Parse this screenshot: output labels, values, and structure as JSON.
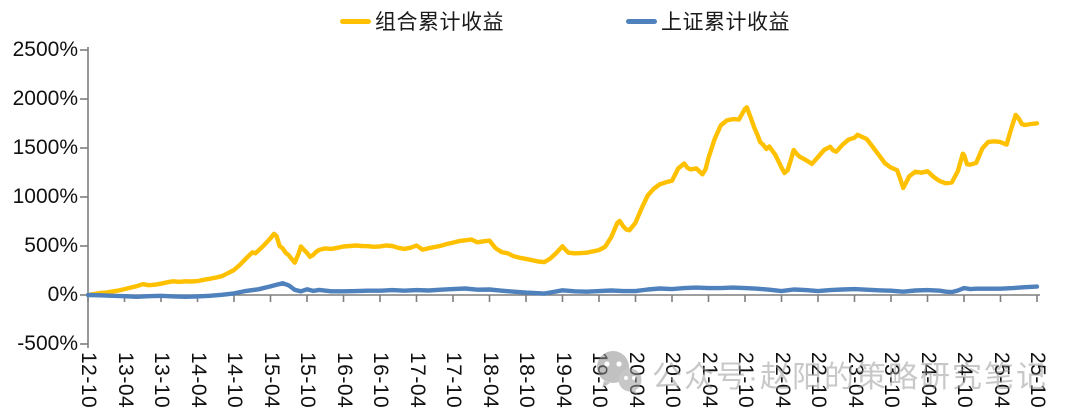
{
  "watermark": {
    "text": "公众号·赵阳的策略研究笔记"
  },
  "chart_data": {
    "type": "line",
    "title": "",
    "xlabel": "",
    "ylabel": "",
    "grid": false,
    "legend_position": "top",
    "x_unit": "months since 2012-10",
    "categories": [
      "12-10",
      "13-04",
      "13-10",
      "14-04",
      "14-10",
      "15-04",
      "15-10",
      "16-04",
      "16-10",
      "17-04",
      "17-10",
      "18-04",
      "18-10",
      "19-04",
      "19-10",
      "20-04",
      "20-10",
      "21-04",
      "21-10",
      "22-04",
      "22-10",
      "23-04",
      "23-10",
      "24-04",
      "24-10",
      "25-04",
      "25-10"
    ],
    "category_spacing_months": 6,
    "ylim": [
      -500,
      2500
    ],
    "ytick_values": [
      -500,
      0,
      500,
      1000,
      1500,
      2000,
      2500
    ],
    "ytick_labels": [
      "-500%",
      "0%",
      "500%",
      "1000%",
      "1500%",
      "2000%",
      "2500%"
    ],
    "axis_color": "#7f7f7f",
    "series": [
      {
        "name": "组合累计收益",
        "color": "#FFC000",
        "points": [
          [
            0,
            0
          ],
          [
            1,
            10
          ],
          [
            2,
            20
          ],
          [
            3,
            25
          ],
          [
            4,
            35
          ],
          [
            5,
            45
          ],
          [
            6,
            60
          ],
          [
            7,
            75
          ],
          [
            8,
            90
          ],
          [
            9,
            110
          ],
          [
            10,
            100
          ],
          [
            11,
            105
          ],
          [
            12,
            115
          ],
          [
            13,
            130
          ],
          [
            14,
            140
          ],
          [
            15,
            135
          ],
          [
            16,
            140
          ],
          [
            17,
            138
          ],
          [
            18,
            142
          ],
          [
            19,
            155
          ],
          [
            20,
            165
          ],
          [
            21,
            178
          ],
          [
            22,
            192
          ],
          [
            23,
            222
          ],
          [
            24,
            255
          ],
          [
            25,
            310
          ],
          [
            26,
            375
          ],
          [
            27,
            435
          ],
          [
            27.5,
            425
          ],
          [
            28,
            452
          ],
          [
            29,
            512
          ],
          [
            30,
            580
          ],
          [
            30.6,
            625
          ],
          [
            31,
            600
          ],
          [
            31.5,
            500
          ],
          [
            32,
            475
          ],
          [
            32.5,
            430
          ],
          [
            33,
            405
          ],
          [
            33.5,
            365
          ],
          [
            34,
            330
          ],
          [
            34.6,
            420
          ],
          [
            35,
            495
          ],
          [
            35.5,
            460
          ],
          [
            36,
            430
          ],
          [
            36.5,
            390
          ],
          [
            37,
            408
          ],
          [
            37.5,
            440
          ],
          [
            38,
            460
          ],
          [
            39,
            475
          ],
          [
            40,
            470
          ],
          [
            41,
            482
          ],
          [
            42,
            495
          ],
          [
            43,
            500
          ],
          [
            44,
            505
          ],
          [
            45,
            500
          ],
          [
            46,
            498
          ],
          [
            47,
            492
          ],
          [
            48,
            496
          ],
          [
            49,
            505
          ],
          [
            50,
            500
          ],
          [
            51,
            482
          ],
          [
            52,
            470
          ],
          [
            53,
            482
          ],
          [
            54,
            505
          ],
          [
            55,
            462
          ],
          [
            56,
            478
          ],
          [
            57,
            490
          ],
          [
            58,
            502
          ],
          [
            59,
            520
          ],
          [
            60,
            535
          ],
          [
            61,
            550
          ],
          [
            62,
            558
          ],
          [
            63,
            566
          ],
          [
            64,
            538
          ],
          [
            65,
            548
          ],
          [
            66,
            555
          ],
          [
            67,
            478
          ],
          [
            68,
            438
          ],
          [
            69,
            425
          ],
          [
            70,
            395
          ],
          [
            71,
            380
          ],
          [
            72,
            368
          ],
          [
            73,
            355
          ],
          [
            74,
            342
          ],
          [
            75,
            336
          ],
          [
            76,
            372
          ],
          [
            77,
            430
          ],
          [
            78,
            498
          ],
          [
            78.5,
            460
          ],
          [
            79,
            432
          ],
          [
            80,
            425
          ],
          [
            81,
            428
          ],
          [
            82,
            432
          ],
          [
            83,
            445
          ],
          [
            84,
            458
          ],
          [
            85,
            492
          ],
          [
            86,
            590
          ],
          [
            87,
            735
          ],
          [
            87.4,
            755
          ],
          [
            88,
            700
          ],
          [
            88.5,
            668
          ],
          [
            89,
            660
          ],
          [
            90,
            738
          ],
          [
            91,
            885
          ],
          [
            92,
            1015
          ],
          [
            93,
            1085
          ],
          [
            94,
            1130
          ],
          [
            95,
            1150
          ],
          [
            96,
            1165
          ],
          [
            97,
            1290
          ],
          [
            98,
            1342
          ],
          [
            98.5,
            1300
          ],
          [
            99,
            1282
          ],
          [
            100,
            1292
          ],
          [
            100.5,
            1262
          ],
          [
            101,
            1232
          ],
          [
            101.5,
            1282
          ],
          [
            102,
            1400
          ],
          [
            103,
            1590
          ],
          [
            104,
            1730
          ],
          [
            105,
            1782
          ],
          [
            106,
            1795
          ],
          [
            107,
            1790
          ],
          [
            108,
            1900
          ],
          [
            108.3,
            1915
          ],
          [
            109,
            1800
          ],
          [
            109.5,
            1712
          ],
          [
            110,
            1640
          ],
          [
            110.5,
            1560
          ],
          [
            111,
            1532
          ],
          [
            111.5,
            1490
          ],
          [
            112,
            1515
          ],
          [
            113,
            1430
          ],
          [
            114,
            1300
          ],
          [
            114.5,
            1245
          ],
          [
            115,
            1272
          ],
          [
            115.5,
            1370
          ],
          [
            116,
            1480
          ],
          [
            116.5,
            1440
          ],
          [
            117,
            1410
          ],
          [
            118,
            1378
          ],
          [
            119,
            1338
          ],
          [
            120,
            1408
          ],
          [
            121,
            1480
          ],
          [
            122,
            1512
          ],
          [
            122.5,
            1475
          ],
          [
            123,
            1462
          ],
          [
            124,
            1532
          ],
          [
            125,
            1585
          ],
          [
            126,
            1605
          ],
          [
            126.5,
            1635
          ],
          [
            127,
            1620
          ],
          [
            128,
            1592
          ],
          [
            129,
            1510
          ],
          [
            130,
            1430
          ],
          [
            131,
            1345
          ],
          [
            132,
            1300
          ],
          [
            133,
            1275
          ],
          [
            133.5,
            1190
          ],
          [
            134,
            1092
          ],
          [
            134.5,
            1150
          ],
          [
            135,
            1212
          ],
          [
            136,
            1258
          ],
          [
            137,
            1248
          ],
          [
            138,
            1262
          ],
          [
            139,
            1205
          ],
          [
            140,
            1162
          ],
          [
            141,
            1140
          ],
          [
            142,
            1148
          ],
          [
            143,
            1265
          ],
          [
            143.8,
            1442
          ],
          [
            144,
            1430
          ],
          [
            144.5,
            1335
          ],
          [
            145,
            1330
          ],
          [
            146,
            1348
          ],
          [
            147,
            1495
          ],
          [
            148,
            1562
          ],
          [
            149,
            1568
          ],
          [
            150,
            1560
          ],
          [
            151,
            1535
          ],
          [
            151.5,
            1640
          ],
          [
            152,
            1745
          ],
          [
            152.5,
            1838
          ],
          [
            153,
            1800
          ],
          [
            153.5,
            1745
          ],
          [
            154,
            1735
          ],
          [
            155,
            1745
          ],
          [
            156,
            1752
          ]
        ]
      },
      {
        "name": "上证累计收益",
        "color": "#4F81BD",
        "points": [
          [
            0,
            0
          ],
          [
            2,
            -3
          ],
          [
            4,
            -8
          ],
          [
            6,
            -12
          ],
          [
            8,
            -18
          ],
          [
            10,
            -12
          ],
          [
            12,
            -8
          ],
          [
            14,
            -14
          ],
          [
            16,
            -18
          ],
          [
            18,
            -14
          ],
          [
            20,
            -8
          ],
          [
            22,
            2
          ],
          [
            24,
            16
          ],
          [
            26,
            42
          ],
          [
            28,
            58
          ],
          [
            30,
            88
          ],
          [
            31,
            105
          ],
          [
            32,
            120
          ],
          [
            33,
            98
          ],
          [
            34,
            52
          ],
          [
            35,
            38
          ],
          [
            36,
            58
          ],
          [
            37,
            42
          ],
          [
            38,
            52
          ],
          [
            40,
            38
          ],
          [
            42,
            38
          ],
          [
            44,
            40
          ],
          [
            46,
            44
          ],
          [
            48,
            44
          ],
          [
            50,
            50
          ],
          [
            52,
            44
          ],
          [
            54,
            50
          ],
          [
            56,
            46
          ],
          [
            58,
            54
          ],
          [
            60,
            60
          ],
          [
            62,
            66
          ],
          [
            64,
            54
          ],
          [
            66,
            56
          ],
          [
            68,
            44
          ],
          [
            70,
            34
          ],
          [
            72,
            24
          ],
          [
            74,
            18
          ],
          [
            75,
            14
          ],
          [
            76,
            26
          ],
          [
            78,
            48
          ],
          [
            80,
            38
          ],
          [
            82,
            34
          ],
          [
            84,
            40
          ],
          [
            86,
            46
          ],
          [
            88,
            40
          ],
          [
            90,
            40
          ],
          [
            92,
            56
          ],
          [
            94,
            66
          ],
          [
            96,
            60
          ],
          [
            98,
            70
          ],
          [
            100,
            76
          ],
          [
            102,
            70
          ],
          [
            104,
            70
          ],
          [
            106,
            76
          ],
          [
            108,
            70
          ],
          [
            110,
            64
          ],
          [
            112,
            54
          ],
          [
            114,
            40
          ],
          [
            116,
            56
          ],
          [
            118,
            50
          ],
          [
            120,
            40
          ],
          [
            122,
            50
          ],
          [
            124,
            56
          ],
          [
            126,
            60
          ],
          [
            128,
            54
          ],
          [
            130,
            48
          ],
          [
            132,
            44
          ],
          [
            134,
            34
          ],
          [
            136,
            46
          ],
          [
            138,
            50
          ],
          [
            140,
            44
          ],
          [
            141,
            34
          ],
          [
            142,
            30
          ],
          [
            143,
            46
          ],
          [
            144,
            70
          ],
          [
            145,
            60
          ],
          [
            146,
            64
          ],
          [
            148,
            64
          ],
          [
            150,
            64
          ],
          [
            152,
            70
          ],
          [
            154,
            80
          ],
          [
            156,
            86
          ]
        ]
      }
    ]
  }
}
